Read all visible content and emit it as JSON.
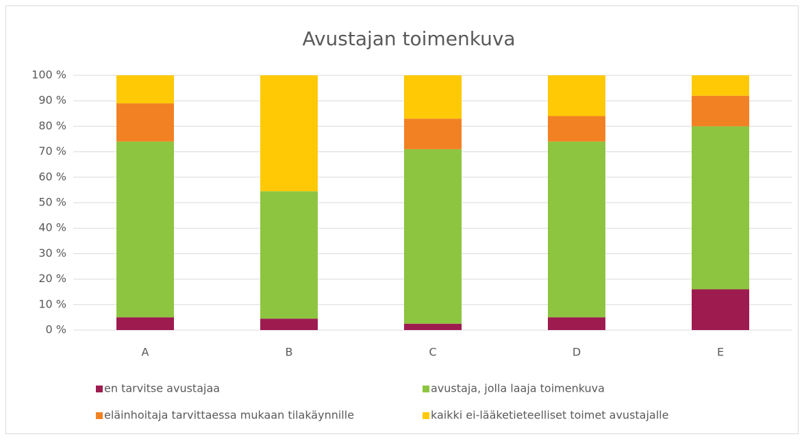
{
  "chart_data": {
    "type": "stacked_bar",
    "title": "Avustajan toimenkuva",
    "categories": [
      "A",
      "B",
      "C",
      "D",
      "E"
    ],
    "series": [
      {
        "name": "en tarvitse avustajaa",
        "color": "#9e1b50",
        "values": [
          5,
          4.5,
          2.5,
          5,
          16
        ]
      },
      {
        "name": "avustaja, jolla laaja toimenkuva",
        "color": "#8dc540",
        "values": [
          69,
          50,
          68.5,
          69,
          64
        ]
      },
      {
        "name": "eläinhoitaja tarvittaessa mukaan tilakäynnille",
        "color": "#f28124",
        "values": [
          15,
          0,
          12,
          10,
          12
        ]
      },
      {
        "name": "kaikki ei-lääketieteelliset toimet avustajalle",
        "color": "#ffc905",
        "values": [
          11,
          45.5,
          17,
          16,
          8
        ]
      }
    ],
    "ylim": [
      0,
      100
    ],
    "yticks": [
      {
        "value": 0,
        "label": "0 %"
      },
      {
        "value": 10,
        "label": "10 %"
      },
      {
        "value": 20,
        "label": "20 %"
      },
      {
        "value": 30,
        "label": "30 %"
      },
      {
        "value": 40,
        "label": "40 %"
      },
      {
        "value": 50,
        "label": "50 %"
      },
      {
        "value": 60,
        "label": "60 %"
      },
      {
        "value": 70,
        "label": "70 %"
      },
      {
        "value": 80,
        "label": "80 %"
      },
      {
        "value": 90,
        "label": "90 %"
      },
      {
        "value": 100,
        "label": "100 %"
      }
    ],
    "grid": true,
    "legend": "bottom"
  }
}
